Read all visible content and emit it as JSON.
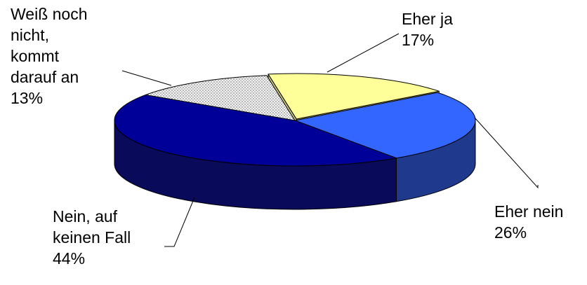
{
  "chart_data": {
    "type": "pie",
    "style": "3d-tilted",
    "title": "",
    "slices": [
      {
        "label_lines": [
          "Eher ja"
        ],
        "value_label": "17%",
        "value": 17,
        "color": "#ffff99",
        "side_color": "#c8c880",
        "pattern": "solid"
      },
      {
        "label_lines": [
          "Eher nein"
        ],
        "value_label": "26%",
        "value": 26,
        "color": "#3366ff",
        "side_color": "#1f3a8c",
        "pattern": "solid"
      },
      {
        "label_lines": [
          "Nein, auf",
          "keinen Fall"
        ],
        "value_label": "44%",
        "value": 44,
        "color": "#000099",
        "side_color": "#0a0a5a",
        "pattern": "solid"
      },
      {
        "label_lines": [
          "Weiß noch",
          "nicht,",
          "kommt",
          "darauf an"
        ],
        "value_label": "13%",
        "value": 13,
        "color": "#e6e6e6",
        "side_color": "#b4b4b4",
        "pattern": "dotted"
      }
    ],
    "legend": "none",
    "labels": "outside-with-leader-lines"
  }
}
